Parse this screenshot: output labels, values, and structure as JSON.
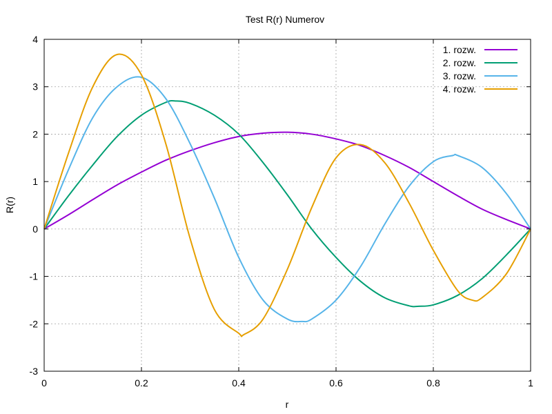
{
  "chart_data": {
    "type": "line",
    "title": "Test R(r) Numerov",
    "xlabel": "r",
    "ylabel": "R(r)",
    "xlim": [
      0,
      1
    ],
    "ylim": [
      -3,
      4
    ],
    "xticks": [
      0,
      0.2,
      0.4,
      0.6,
      0.8,
      1
    ],
    "xtick_labels": [
      "0",
      "0.2",
      "0.4",
      "0.6",
      "0.8",
      "1"
    ],
    "yticks": [
      -3,
      -2,
      -1,
      0,
      1,
      2,
      3,
      4
    ],
    "ytick_labels": [
      "-3",
      "-2",
      "-1",
      "0",
      "1",
      "2",
      "3",
      "4"
    ],
    "grid": true,
    "legend": "top-right",
    "series": [
      {
        "name": "1. rozw.",
        "color": "#9400d3",
        "x": [
          0,
          0.05,
          0.1,
          0.15,
          0.2,
          0.25,
          0.3,
          0.35,
          0.4,
          0.45,
          0.5,
          0.55,
          0.6,
          0.65,
          0.7,
          0.75,
          0.8,
          0.85,
          0.9,
          0.95,
          1
        ],
        "y": [
          0,
          0.3,
          0.62,
          0.93,
          1.2,
          1.45,
          1.65,
          1.82,
          1.95,
          2.02,
          2.04,
          2.0,
          1.9,
          1.76,
          1.55,
          1.3,
          1.0,
          0.7,
          0.42,
          0.2,
          0
        ]
      },
      {
        "name": "2. rozw.",
        "color": "#009e73",
        "x": [
          0,
          0.05,
          0.1,
          0.15,
          0.2,
          0.25,
          0.27,
          0.3,
          0.35,
          0.4,
          0.45,
          0.5,
          0.55,
          0.6,
          0.65,
          0.7,
          0.75,
          0.77,
          0.8,
          0.85,
          0.9,
          0.95,
          1
        ],
        "y": [
          0,
          0.7,
          1.35,
          1.95,
          2.4,
          2.67,
          2.7,
          2.65,
          2.4,
          2.0,
          1.4,
          0.72,
          0.0,
          -0.6,
          -1.1,
          -1.45,
          -1.62,
          -1.63,
          -1.6,
          -1.4,
          -1.05,
          -0.55,
          0
        ]
      },
      {
        "name": "3. rozw.",
        "color": "#56b4e9",
        "x": [
          0,
          0.05,
          0.1,
          0.15,
          0.2,
          0.25,
          0.3,
          0.35,
          0.4,
          0.45,
          0.5,
          0.53,
          0.55,
          0.6,
          0.65,
          0.7,
          0.75,
          0.8,
          0.84,
          0.85,
          0.9,
          0.95,
          1
        ],
        "y": [
          0,
          1.25,
          2.35,
          3.0,
          3.2,
          2.75,
          1.8,
          0.65,
          -0.6,
          -1.5,
          -1.9,
          -1.95,
          -1.9,
          -1.5,
          -0.8,
          0.1,
          0.9,
          1.42,
          1.55,
          1.55,
          1.3,
          0.75,
          0
        ]
      },
      {
        "name": "4. rozw.",
        "color": "#e69f00",
        "x": [
          0,
          0.05,
          0.1,
          0.15,
          0.2,
          0.25,
          0.3,
          0.35,
          0.4,
          0.41,
          0.45,
          0.5,
          0.55,
          0.6,
          0.65,
          0.7,
          0.75,
          0.8,
          0.85,
          0.88,
          0.9,
          0.95,
          1
        ],
        "y": [
          0,
          1.6,
          3.0,
          3.68,
          3.25,
          1.8,
          -0.2,
          -1.7,
          -2.2,
          -2.23,
          -1.9,
          -0.85,
          0.45,
          1.5,
          1.78,
          1.4,
          0.55,
          -0.45,
          -1.3,
          -1.5,
          -1.45,
          -0.95,
          0
        ]
      }
    ]
  }
}
